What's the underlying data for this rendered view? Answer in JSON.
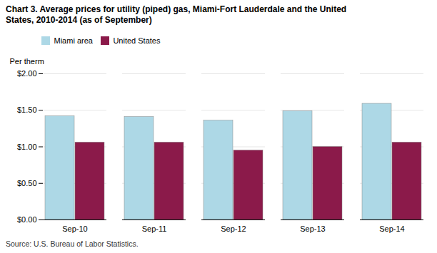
{
  "chart_data": {
    "type": "bar",
    "title": "Chart 3. Average prices for utility (piped) gas, Miami-Fort Lauderdale and the United\nStates, 2010-2014 (as of September)",
    "ylabel": "Per therm",
    "source": "Source: U.S. Bureau of Labor Statistics.",
    "categories": [
      "Sep-10",
      "Sep-11",
      "Sep-12",
      "Sep-13",
      "Sep-14"
    ],
    "series": [
      {
        "name": "Miami area",
        "color": "#ADD8E6",
        "values": [
          1.42,
          1.41,
          1.36,
          1.49,
          1.59
        ]
      },
      {
        "name": "United States",
        "color": "#8B1A4A",
        "values": [
          1.06,
          1.06,
          0.95,
          1.0,
          1.06
        ]
      }
    ],
    "ylim": [
      0.0,
      2.0
    ],
    "yticks": [
      {
        "value": 0.0,
        "label": "$0.00"
      },
      {
        "value": 0.5,
        "label": "$0.50"
      },
      {
        "value": 1.0,
        "label": "$1.00"
      },
      {
        "value": 1.5,
        "label": "$1.50"
      },
      {
        "value": 2.0,
        "label": "$2.00"
      }
    ],
    "grid": true,
    "legend": "top"
  }
}
